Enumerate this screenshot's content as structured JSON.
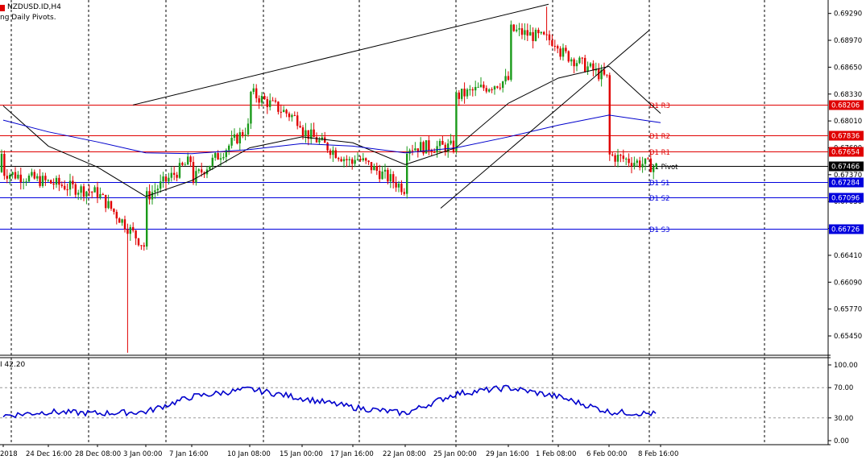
{
  "header": {
    "symbol": "NZDUSD.ID,H4",
    "indicator_caption": "ng Daily Pivots."
  },
  "sub_window": {
    "caption": "I 42.20"
  },
  "colors": {
    "bull_candle": "#1a9a1a",
    "bear_candle": "#e00000",
    "resistance": "#e00000",
    "pivot": "#000000",
    "support": "#0000dd",
    "ma_fast": "#000000",
    "ma_slow": "#0000cc",
    "oscillator": "#0000cc",
    "grid": "#000000",
    "price_tag_text": "#ffffff"
  },
  "chart_data": [
    {
      "type": "candlestick",
      "symbol": "NZDUSD.ID",
      "timeframe": "H4",
      "ylim": [
        0.6522,
        0.6945
      ],
      "y_ticks": [
        "0.69290",
        "0.68970",
        "0.68650",
        "0.68330",
        "0.68010",
        "0.67690",
        "0.67370",
        "0.67050",
        "0.66730",
        "0.66410",
        "0.66090",
        "0.65770",
        "0.65450"
      ],
      "x_ticks": [
        "2018",
        "24 Dec 16:00",
        "28 Dec 08:00",
        "3 Jan 00:00",
        "7 Jan 16:00",
        "10 Jan 08:00",
        "15 Jan 00:00",
        "17 Jan 16:00",
        "22 Jan 08:00",
        "25 Jan 00:00",
        "29 Jan 16:00",
        "1 Feb 08:00",
        "6 Feb 00:00",
        "8 Feb 16:00"
      ],
      "pivot_levels": [
        {
          "label": "D1 R3",
          "value": 0.682,
          "tag": "0.68206",
          "kind": "resistance"
        },
        {
          "label": "D1 R2",
          "value": 0.6784,
          "tag": "0.67836",
          "kind": "resistance"
        },
        {
          "label": "D1 R1",
          "value": 0.6765,
          "tag": "0.67654",
          "kind": "resistance"
        },
        {
          "label": "D1 Pivot",
          "value": 0.6747,
          "tag": "0.67466",
          "kind": "pivot"
        },
        {
          "label": "D1 S1",
          "value": 0.6728,
          "tag": "0.67284",
          "kind": "support"
        },
        {
          "label": "D1 S2",
          "value": 0.671,
          "tag": "0.67096",
          "kind": "support"
        },
        {
          "label": "D1 S3",
          "value": 0.6673,
          "tag": "0.66726",
          "kind": "support"
        }
      ],
      "anchors": [
        [
          "2018",
          0.674
        ],
        [
          "24 Dec 16:00",
          0.6728
        ],
        [
          "28 Dec 08:00",
          0.6715
        ],
        [
          "3 Jan 00:00",
          0.665
        ],
        [
          "3 Jan 00:00",
          0.671
        ],
        [
          "7 Jan 16:00",
          0.6755
        ],
        [
          "7 Jan 16:00",
          0.673
        ],
        [
          "10 Jan 08:00",
          0.6795
        ],
        [
          "10 Jan 08:00",
          0.6835
        ],
        [
          "15 Jan 00:00",
          0.68
        ],
        [
          "15 Jan 00:00",
          0.679
        ],
        [
          "17 Jan 16:00",
          0.675
        ],
        [
          "17 Jan 16:00",
          0.676
        ],
        [
          "22 Jan 08:00",
          0.672
        ],
        [
          "22 Jan 08:00",
          0.677
        ],
        [
          "25 Jan 00:00",
          0.677
        ],
        [
          "25 Jan 00:00",
          0.683
        ],
        [
          "29 Jan 16:00",
          0.685
        ],
        [
          "29 Jan 16:00",
          0.691
        ],
        [
          "1 Feb 08:00",
          0.6895
        ],
        [
          "1 Feb 08:00",
          0.6885
        ],
        [
          "6 Feb 00:00",
          0.685
        ],
        [
          "6 Feb 00:00",
          0.676
        ],
        [
          "8 Feb 16:00",
          0.6745
        ],
        [
          "8 Feb 16:00",
          0.6762
        ]
      ],
      "extremes": [
        {
          "x": "3 Jan 00:00",
          "low": 0.6525
        },
        {
          "x": "29 Jan 16:00",
          "high": 0.6937
        }
      ],
      "moving_averages": [
        {
          "color": "ma_fast",
          "points": [
            [
              "2018",
              0.6819
            ],
            [
              "24 Dec 16:00",
              0.6771
            ],
            [
              "28 Dec 08:00",
              0.6746
            ],
            [
              "3 Jan 00:00",
              0.6711
            ],
            [
              "7 Jan 16:00",
              0.673
            ],
            [
              "10 Jan 08:00",
              0.6769
            ],
            [
              "15 Jan 00:00",
              0.6782
            ],
            [
              "17 Jan 16:00",
              0.6775
            ],
            [
              "22 Jan 08:00",
              0.6749
            ],
            [
              "25 Jan 00:00",
              0.6769
            ],
            [
              "29 Jan 16:00",
              0.6822
            ],
            [
              "1 Feb 08:00",
              0.6852
            ],
            [
              "6 Feb 00:00",
              0.6866
            ],
            [
              "8 Feb 16:00",
              0.681
            ]
          ]
        },
        {
          "color": "ma_slow",
          "points": [
            [
              "2018",
              0.6802
            ],
            [
              "24 Dec 16:00",
              0.6788
            ],
            [
              "28 Dec 08:00",
              0.6776
            ],
            [
              "3 Jan 00:00",
              0.6763
            ],
            [
              "7 Jan 16:00",
              0.6762
            ],
            [
              "10 Jan 08:00",
              0.6767
            ],
            [
              "15 Jan 00:00",
              0.6774
            ],
            [
              "17 Jan 16:00",
              0.6771
            ],
            [
              "22 Jan 08:00",
              0.6763
            ],
            [
              "25 Jan 00:00",
              0.6769
            ],
            [
              "29 Jan 16:00",
              0.6782
            ],
            [
              "1 Feb 08:00",
              0.6796
            ],
            [
              "6 Feb 00:00",
              0.6808
            ],
            [
              "8 Feb 16:00",
              0.6799
            ]
          ]
        }
      ],
      "trendlines": [
        {
          "from": [
            "28 Dec 08:00",
            0.682
          ],
          "to": [
            "29 Jan 16:00",
            0.694
          ]
        },
        {
          "from": [
            "22 Jan 08:00",
            0.6697
          ],
          "to": [
            "6 Feb 00:00",
            0.6909
          ]
        }
      ]
    },
    {
      "type": "line",
      "title": "I 42.20",
      "ylim": [
        0,
        100
      ],
      "y_ticks": [
        "100.00",
        "70.00",
        "30.00",
        "0.00"
      ],
      "levels": [
        70,
        30
      ],
      "x": [
        "2018",
        "24 Dec 16:00",
        "28 Dec 08:00",
        "3 Jan 00:00",
        "7 Jan 16:00",
        "10 Jan 08:00",
        "15 Jan 00:00",
        "17 Jan 16:00",
        "22 Jan 08:00",
        "25 Jan 00:00",
        "29 Jan 16:00",
        "1 Feb 08:00",
        "6 Feb 00:00",
        "8 Feb 16:00"
      ],
      "values": [
        33,
        38,
        36,
        38,
        58,
        68,
        56,
        44,
        36,
        62,
        70,
        58,
        38,
        35
      ]
    }
  ]
}
